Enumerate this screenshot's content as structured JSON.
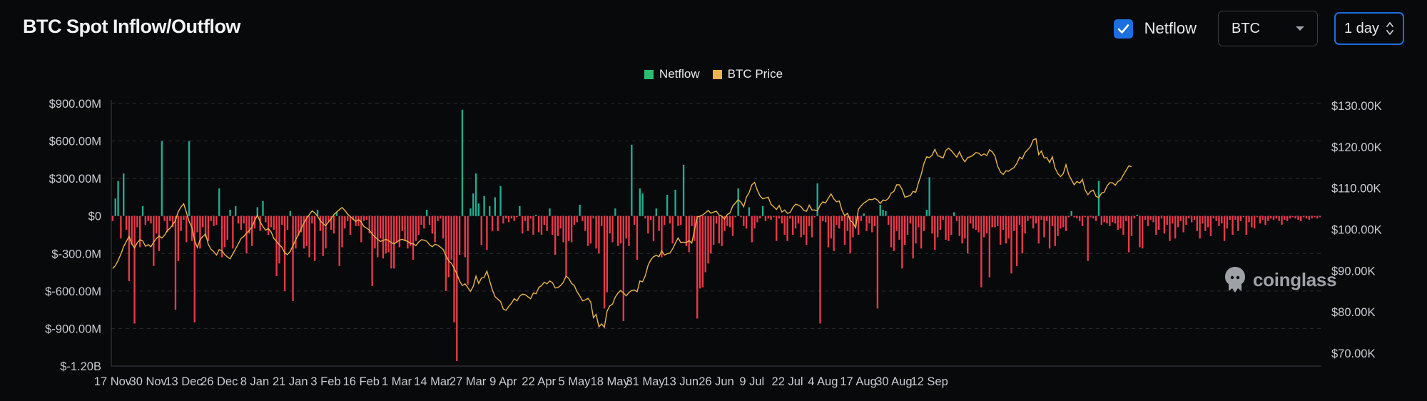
{
  "header": {
    "title": "BTC Spot Inflow/Outflow",
    "netflow_checkbox_label": "Netflow",
    "netflow_checked": true,
    "asset_select": "BTC",
    "interval_select": "1 day"
  },
  "colors": {
    "background": "#08090b",
    "positive": "#1fae92",
    "negative": "#e8394a",
    "price_line": "#e9b44c",
    "accent": "#1b6fe0",
    "grid": "#2a2d33",
    "legend_netflow": "#2ebd6e",
    "legend_price": "#e9b44c"
  },
  "icons": {
    "checkbox": "check-icon",
    "asset_select": "caret-down-icon",
    "interval_select": "up-down-arrows-icon",
    "watermark": "coinglass-logo-icon"
  },
  "watermark": "coinglass",
  "chart_data": {
    "type": "bar",
    "title": "",
    "legend": [
      {
        "name": "Netflow",
        "color": "#2ebd6e"
      },
      {
        "name": "BTC Price",
        "color": "#e9b44c"
      }
    ],
    "legend_position": "top-center",
    "grid": true,
    "x_tick_labels": [
      "17 Nov",
      "30 Nov",
      "13 Dec",
      "26 Dec",
      "8 Jan",
      "21 Jan",
      "3 Feb",
      "16 Feb",
      "1 Mar",
      "14 Mar",
      "27 Mar",
      "9 Apr",
      "22 Apr",
      "5 May",
      "18 May",
      "31 May",
      "13 Jun",
      "26 Jun",
      "9 Jul",
      "22 Jul",
      "4 Aug",
      "17 Aug",
      "30 Aug",
      "12 Sep"
    ],
    "y_left_tick_labels": [
      "$900.00M",
      "$600.00M",
      "$300.00M",
      "$0",
      "$-300.0M",
      "$-600.00M",
      "$-900.00M",
      "$-1.20B"
    ],
    "y_right_tick_labels": [
      "$130.00K",
      "$120.00K",
      "$110.00K",
      "$100.00K",
      "$90.00K",
      "$80.00K",
      "$70.00K"
    ],
    "y_left_range": [
      -1200,
      900
    ],
    "y_left_unit": "$M",
    "y_right_range": [
      70000,
      130000
    ],
    "y_right_unit": "$",
    "start_date": "2024-11-17",
    "x_step_days": 1,
    "series": [
      {
        "name": "Netflow",
        "axis": "left",
        "values": [
          -40,
          140,
          280,
          -180,
          340,
          -110,
          -520,
          -230,
          -860,
          -90,
          -250,
          80,
          -70,
          -40,
          -60,
          -400,
          -140,
          -280,
          600,
          -40,
          -130,
          -40,
          -90,
          -750,
          -360,
          -120,
          -30,
          -210,
          600,
          -200,
          -850,
          -130,
          -260,
          -90,
          -170,
          -200,
          -40,
          -80,
          -70,
          220,
          -330,
          -250,
          -190,
          50,
          -260,
          80,
          -60,
          -110,
          -60,
          -300,
          -140,
          -240,
          -100,
          70,
          -120,
          120,
          -50,
          -150,
          -90,
          -110,
          -480,
          -380,
          -70,
          -600,
          -110,
          40,
          -680,
          -260,
          -160,
          -130,
          -260,
          -240,
          -330,
          -60,
          -360,
          50,
          -120,
          -320,
          -260,
          -50,
          -110,
          -140,
          30,
          -400,
          -250,
          -100,
          -40,
          -150,
          -30,
          -80,
          -80,
          -210,
          -40,
          -30,
          -140,
          -560,
          -260,
          -330,
          -180,
          -340,
          -300,
          -290,
          -420,
          -420,
          -210,
          -250,
          -120,
          -200,
          -260,
          -240,
          -350,
          -200,
          -150,
          -70,
          -100,
          50,
          -70,
          -140,
          -210,
          -40,
          -20,
          -180,
          -600,
          -490,
          -350,
          -850,
          -1160,
          -310,
          850,
          -330,
          -550,
          60,
          180,
          340,
          100,
          -230,
          160,
          -270,
          80,
          -120,
          150,
          -120,
          240,
          -60,
          -20,
          -50,
          -20,
          -40,
          -10,
          80,
          -140,
          -40,
          -120,
          -20,
          -150,
          10,
          -130,
          -150,
          -70,
          -120,
          60,
          -150,
          -310,
          -160,
          -100,
          -210,
          -480,
          -200,
          -210,
          -70,
          -50,
          90,
          -40,
          -120,
          -240,
          -220,
          -20,
          -260,
          -300,
          -80,
          -740,
          -610,
          -140,
          -210,
          60,
          -240,
          -220,
          -840,
          -180,
          -240,
          570,
          -70,
          -350,
          220,
          180,
          -20,
          -140,
          -30,
          -200,
          60,
          -120,
          -330,
          -70,
          170,
          -60,
          -220,
          210,
          -80,
          -70,
          410,
          -240,
          -290,
          -80,
          -200,
          -820,
          -580,
          -570,
          -450,
          -380,
          -300,
          -230,
          -60,
          -220,
          -240,
          -120,
          -80,
          -90,
          -160,
          -10,
          220,
          -10,
          -80,
          -100,
          70,
          -210,
          -100,
          -50,
          -20,
          80,
          -40,
          -20,
          -30,
          -10,
          -200,
          -20,
          -60,
          -150,
          -200,
          -20,
          -150,
          -100,
          -60,
          -170,
          -150,
          -230,
          -80,
          -170,
          -10,
          260,
          -860,
          -40,
          -50,
          -250,
          -180,
          -280,
          -70,
          -100,
          -40,
          -230,
          -120,
          -300,
          -170,
          -80,
          -150,
          -40,
          20,
          -120,
          -60,
          -130,
          -80,
          -740,
          90,
          50,
          40,
          -70,
          -250,
          -280,
          -120,
          -190,
          -420,
          -230,
          -150,
          -60,
          -340,
          -220,
          -90,
          -260,
          -120,
          50,
          310,
          -140,
          -270,
          -170,
          -110,
          -30,
          -190,
          -200,
          -150,
          30,
          -40,
          -160,
          -220,
          -180,
          -300,
          -60,
          -100,
          -110,
          -130,
          -570,
          -170,
          -140,
          -490,
          -90,
          -90,
          -80,
          -230,
          -110,
          -220,
          -180,
          -460,
          -120,
          -400,
          -70,
          -300,
          -140,
          -40,
          -20,
          -100,
          -60,
          -220,
          -30,
          -170,
          -40,
          -260,
          -80,
          -240,
          -160,
          -100,
          -90,
          -120,
          -10,
          40,
          -10,
          -20,
          -40,
          -80,
          -10,
          -360,
          -10,
          -20,
          -40,
          280,
          -70,
          -50,
          -60,
          -80,
          -50,
          -60,
          -110,
          -100,
          -150,
          -40,
          -290,
          -160,
          -20,
          10,
          -250,
          -260,
          -30,
          -80,
          -30,
          -50,
          -150,
          -110,
          -20,
          -140,
          -70,
          -200,
          -60,
          -180,
          -90,
          -40,
          -130,
          -70,
          -20,
          -50,
          -30,
          -120,
          -180,
          -60,
          -120,
          -90,
          -160,
          -20,
          -40,
          -80,
          -60,
          -200,
          -100,
          -30,
          -150,
          -30,
          -120,
          -40,
          -10,
          -150,
          -50,
          -90,
          -100,
          -10,
          -60,
          -30,
          -70,
          -40,
          -20,
          -30,
          -20,
          -40,
          -70,
          -30,
          -40,
          -20,
          -10,
          -20,
          -30,
          -40,
          -10,
          -20,
          -30,
          -20,
          -10,
          -20,
          -10
        ]
      },
      {
        "name": "BTC Price",
        "axis": "right",
        "values": [
          90500,
          91200,
          92500,
          94000,
          95800,
          97100,
          98300,
          96500,
          95500,
          96800,
          97500,
          97200,
          95900,
          96300,
          95800,
          96900,
          97800,
          98400,
          97900,
          98600,
          99700,
          100300,
          101100,
          102200,
          104300,
          105400,
          106200,
          104100,
          101900,
          100500,
          97300,
          95600,
          97500,
          98300,
          98900,
          96400,
          95200,
          94600,
          93800,
          95100,
          94800,
          93900,
          93300,
          92900,
          94100,
          95300,
          96500,
          97800,
          98300,
          99100,
          99700,
          100600,
          102200,
          103400,
          101800,
          100700,
          99800,
          100200,
          99400,
          97800,
          97100,
          96300,
          95600,
          94300,
          93900,
          94700,
          96100,
          97400,
          98800,
          100200,
          101500,
          102700,
          103600,
          104500,
          104000,
          103200,
          102100,
          101400,
          100900,
          101800,
          102600,
          103600,
          104200,
          104800,
          105300,
          104600,
          103700,
          103100,
          102500,
          101900,
          102400,
          101800,
          100700,
          100300,
          99800,
          98900,
          98200,
          97600,
          97100,
          97300,
          97600,
          97300,
          96800,
          96500,
          96900,
          97400,
          97600,
          97300,
          97100,
          96600,
          96500,
          96100,
          96900,
          97500,
          97400,
          97100,
          96300,
          95800,
          96400,
          96200,
          95700,
          95100,
          93600,
          92400,
          91800,
          90600,
          89200,
          87500,
          86400,
          86800,
          85900,
          85000,
          86200,
          88700,
          86900,
          88200,
          88400,
          89900,
          87600,
          85300,
          83700,
          83100,
          82500,
          80700,
          80400,
          81300,
          82100,
          83200,
          82700,
          83800,
          84300,
          84200,
          83700,
          83200,
          84600,
          84400,
          85900,
          86400,
          87200,
          86800,
          87500,
          87100,
          85800,
          85900,
          86400,
          87200,
          88700,
          88100,
          86900,
          86400,
          84900,
          83900,
          82700,
          82900,
          83300,
          82400,
          78600,
          79400,
          76400,
          77100,
          76300,
          80200,
          81500,
          81900,
          83600,
          84600,
          85200,
          84600,
          83900,
          84700,
          85200,
          85300,
          84900,
          87500,
          87300,
          88800,
          91300,
          92600,
          93400,
          93700,
          93400,
          94800,
          93800,
          94100,
          94300,
          95300,
          96700,
          97900,
          96800,
          96900,
          96800,
          97300,
          96700,
          99800,
          103000,
          103200,
          103500,
          104000,
          104600,
          103900,
          104200,
          104400,
          103500,
          103200,
          102500,
          103600,
          104000,
          105700,
          106400,
          107200,
          106600,
          105500,
          107800,
          108900,
          110800,
          111400,
          109500,
          108100,
          107400,
          107600,
          107800,
          106100,
          105500,
          104800,
          105800,
          104200,
          104700,
          103900,
          104100,
          105300,
          106100,
          105900,
          105500,
          104600,
          104400,
          105900,
          104700,
          104700,
          104500,
          105900,
          106700,
          106400,
          107600,
          108600,
          107400,
          106700,
          106900,
          104600,
          103300,
          103900,
          102200,
          101600,
          100400,
          104900,
          105700,
          106400,
          106800,
          107300,
          107200,
          107500,
          107100,
          106300,
          107100,
          107000,
          107500,
          108800,
          109200,
          110800,
          110800,
          109700,
          107800,
          108000,
          108200,
          109200,
          109000,
          111300,
          113300,
          116000,
          117600,
          117400,
          118000,
          119400,
          117900,
          117600,
          117300,
          119100,
          119700,
          119100,
          118300,
          117500,
          118800,
          117300,
          116400,
          117400,
          117600,
          118000,
          118600,
          118500,
          117900,
          118300,
          117900,
          119300,
          118800,
          117800,
          115300,
          113900,
          113300,
          114200,
          114100,
          114600,
          115000,
          116000,
          117500,
          117100,
          118600,
          119300,
          120100,
          121700,
          122000,
          118100,
          119000,
          117300,
          117400,
          116200,
          117600,
          114900,
          113500,
          112800,
          113500,
          115700,
          113300,
          112000,
          110800,
          111600,
          111200,
          112100,
          109600,
          108400,
          109200,
          109500,
          108000,
          107700,
          108800,
          109000,
          110500,
          111300,
          111300,
          110700,
          111600,
          112000,
          113200,
          114300,
          115400,
          115200
        ]
      }
    ]
  }
}
